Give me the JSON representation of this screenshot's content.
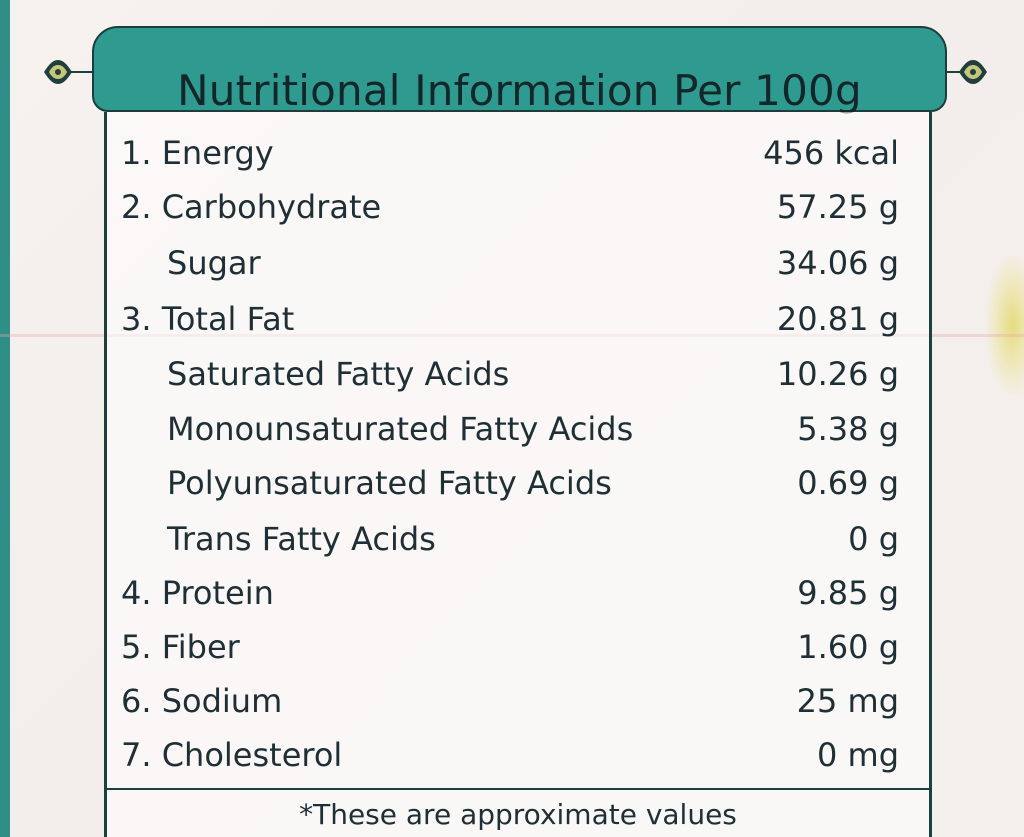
{
  "header": {
    "title": "Nutritional Information Per 100g"
  },
  "rows": [
    {
      "label": "1. Energy",
      "value": "456 kcal"
    },
    {
      "label": "2. Carbohydrate",
      "value": "57.25 g"
    },
    {
      "label": "Sugar",
      "value": "34.06 g"
    },
    {
      "label": "3. Total Fat",
      "value": "20.81 g"
    },
    {
      "label": "Saturated Fatty Acids",
      "value": "10.26 g"
    },
    {
      "label": "Monounsaturated Fatty Acids",
      "value": "5.38 g"
    },
    {
      "label": "Polyunsaturated Fatty Acids",
      "value": "0.69 g"
    },
    {
      "label": "Trans Fatty Acids",
      "value": "0 g"
    },
    {
      "label": "4. Protein",
      "value": "9.85 g"
    },
    {
      "label": "5. Fiber",
      "value": "1.60 g"
    },
    {
      "label": "6. Sodium",
      "value": "25 mg"
    },
    {
      "label": "7. Cholesterol",
      "value": "0 mg"
    }
  ],
  "footer": {
    "note": "*These are approximate values"
  },
  "colors": {
    "accent": "#2f9a8f",
    "border": "#1c3f40",
    "text": "#1f2f36",
    "background": "#f4f0ec"
  },
  "icons": {
    "left": "ornament-left-icon",
    "right": "ornament-right-icon"
  }
}
